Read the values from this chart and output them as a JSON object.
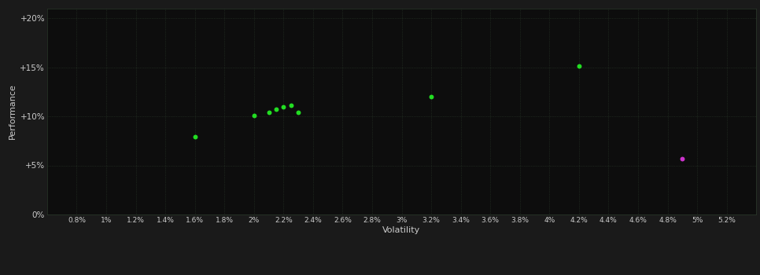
{
  "background_color": "#1a1a1a",
  "plot_bg_color": "#0d0d0d",
  "grid_color": "#2a3a2a",
  "text_color": "#cccccc",
  "xlabel": "Volatility",
  "ylabel": "Performance",
  "xlim": [
    0.006,
    0.054
  ],
  "ylim": [
    0.0,
    0.21
  ],
  "xticks": [
    0.008,
    0.01,
    0.012,
    0.014,
    0.016,
    0.018,
    0.02,
    0.022,
    0.024,
    0.026,
    0.028,
    0.03,
    0.032,
    0.034,
    0.036,
    0.038,
    0.04,
    0.042,
    0.044,
    0.046,
    0.048,
    0.05,
    0.052
  ],
  "xtick_labels": [
    "0.8%",
    "1%",
    "1.2%",
    "1.4%",
    "1.6%",
    "1.8%",
    "2%",
    "2.2%",
    "2.4%",
    "2.6%",
    "2.8%",
    "3%",
    "3.2%",
    "3.4%",
    "3.6%",
    "3.8%",
    "4%",
    "4.2%",
    "4.4%",
    "4.6%",
    "4.8%",
    "5%",
    "5.2%"
  ],
  "yticks": [
    0.0,
    0.05,
    0.1,
    0.15,
    0.2
  ],
  "ytick_labels": [
    "0%",
    "+5%",
    "+10%",
    "+15%",
    "+20%"
  ],
  "green_points": [
    [
      0.016,
      0.079
    ],
    [
      0.02,
      0.101
    ],
    [
      0.021,
      0.104
    ],
    [
      0.0215,
      0.107
    ],
    [
      0.022,
      0.11
    ],
    [
      0.0225,
      0.111
    ],
    [
      0.023,
      0.104
    ],
    [
      0.032,
      0.12
    ],
    [
      0.042,
      0.151
    ]
  ],
  "magenta_points": [
    [
      0.049,
      0.057
    ]
  ],
  "green_color": "#22dd22",
  "magenta_color": "#cc33cc",
  "marker_size": 18
}
